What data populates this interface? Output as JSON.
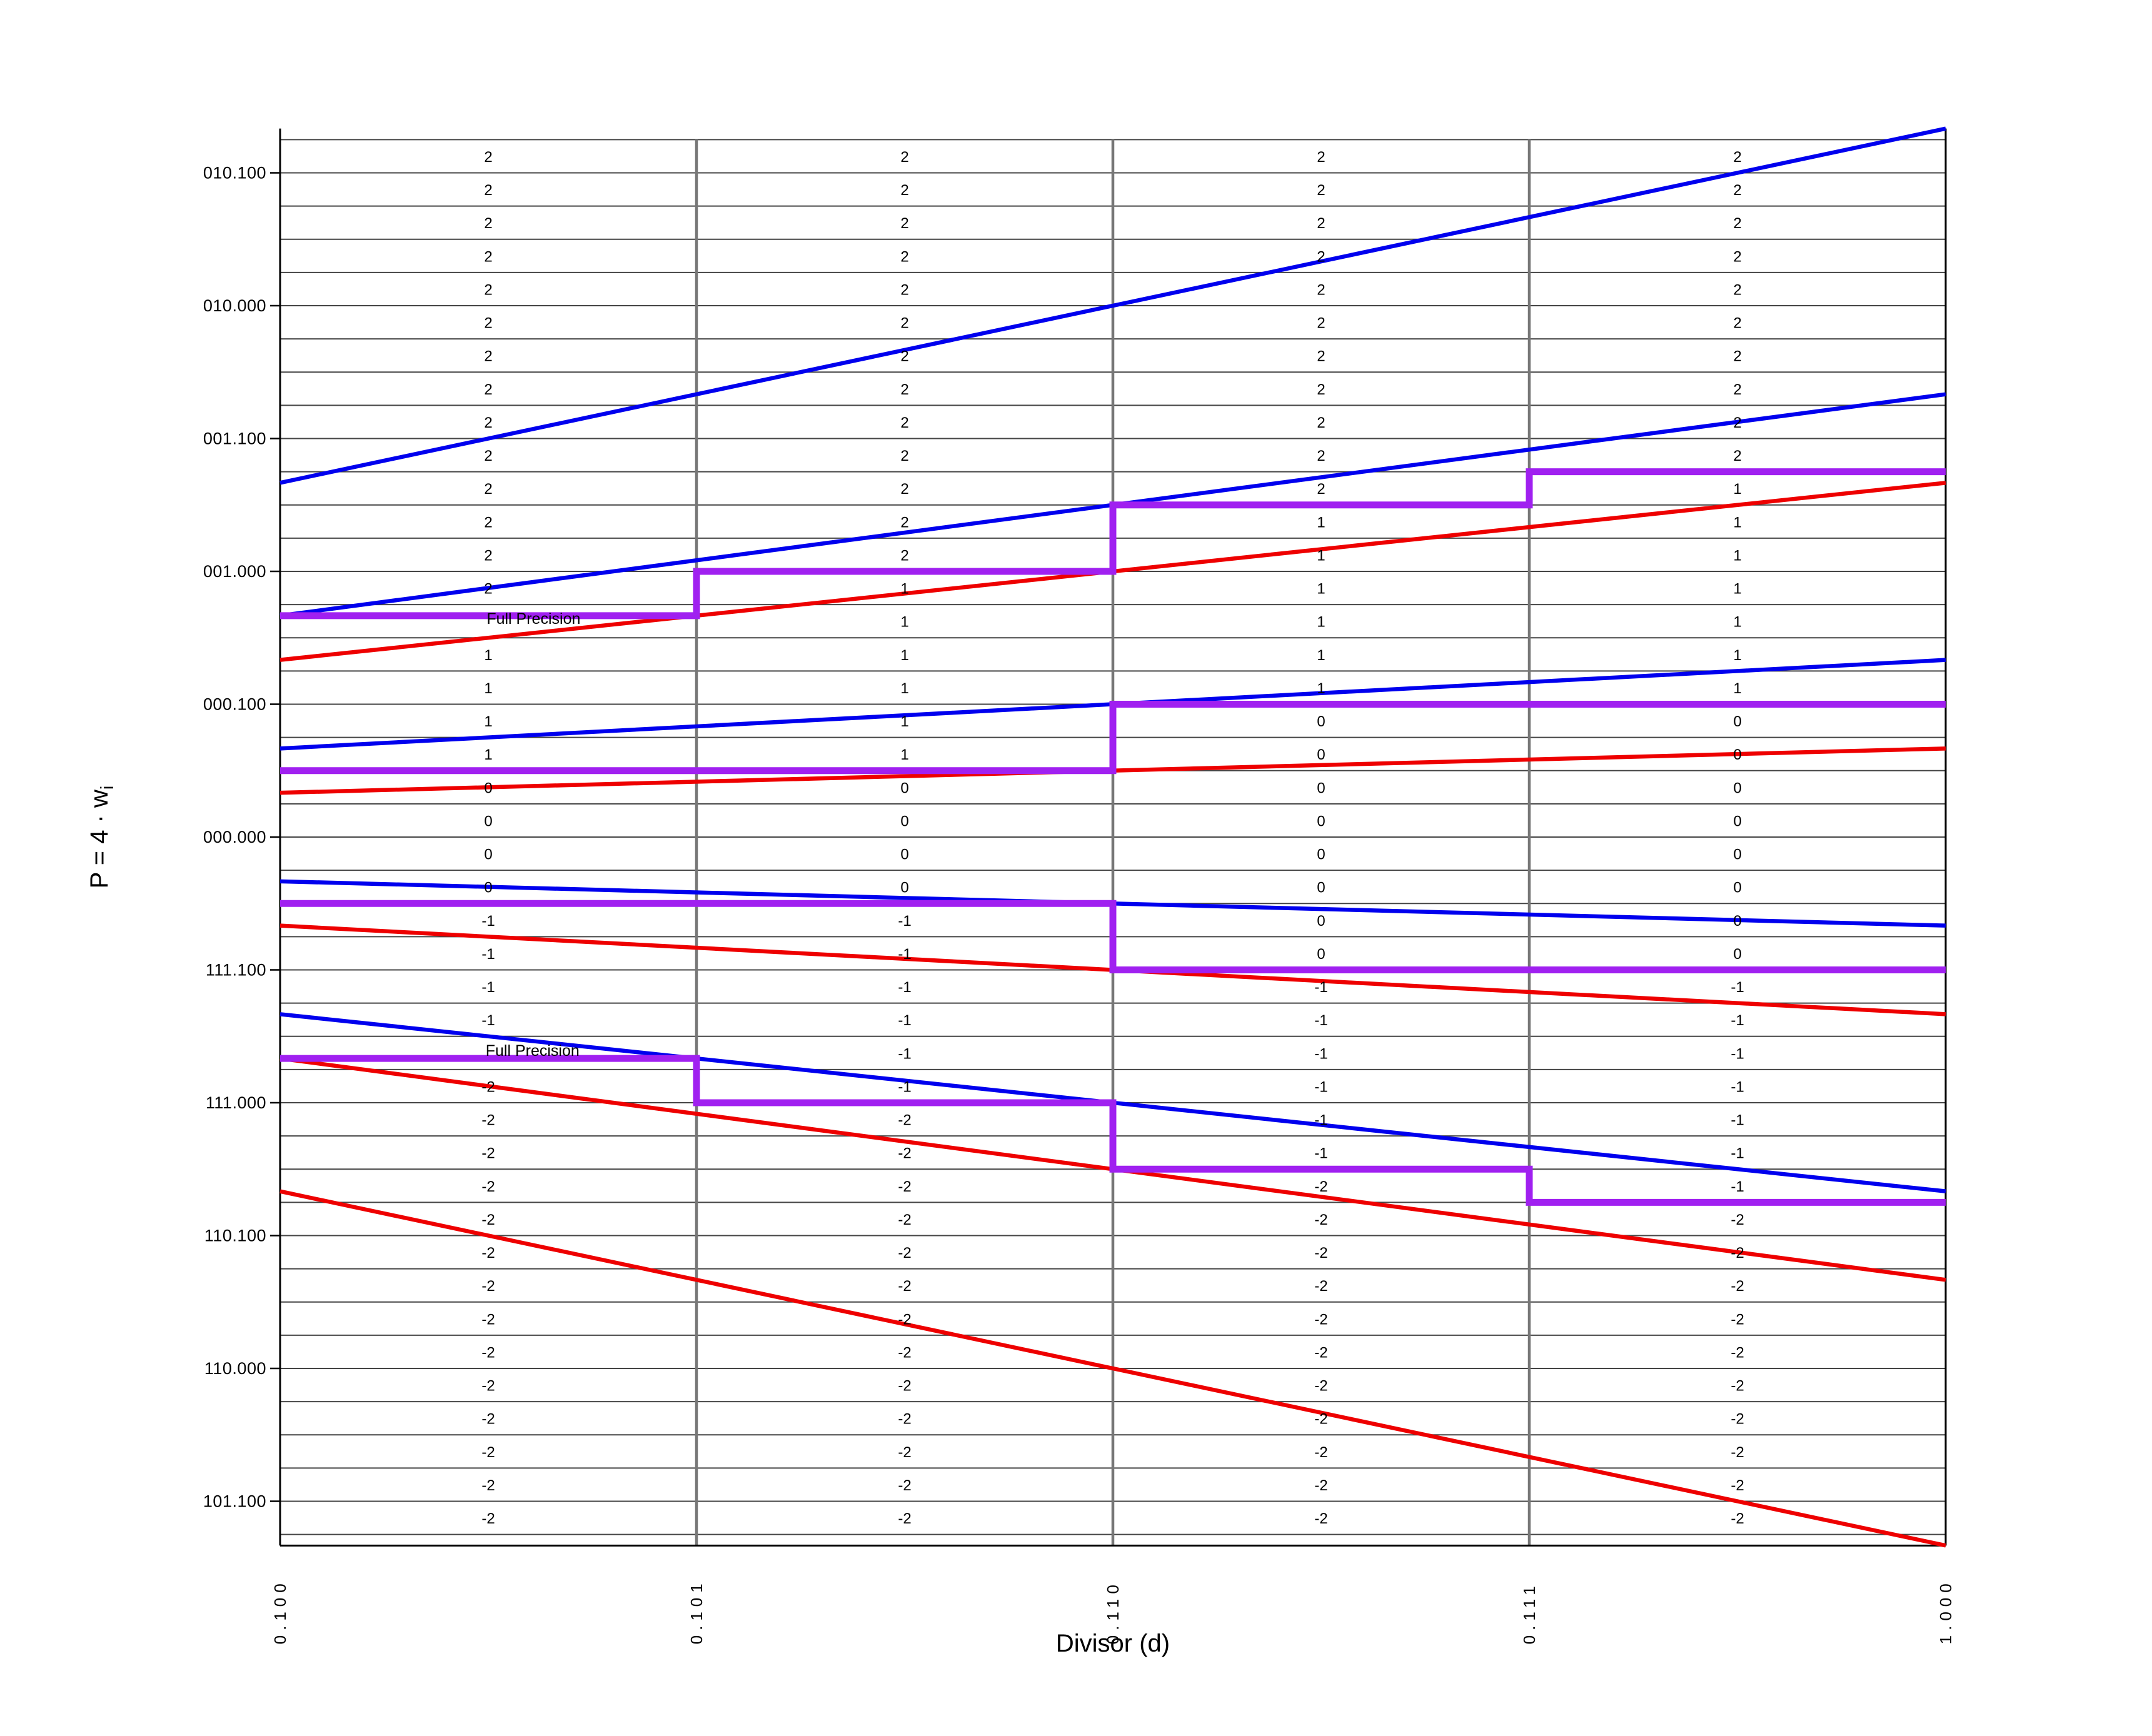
{
  "page": {
    "background": "#ffffff"
  },
  "colors": {
    "blue_lines": "#0000EE",
    "red_lines": "#EE0000",
    "staircase_purple": "#A020F0",
    "grid_horizontal": "#444444",
    "grid_vertical": "#777777",
    "axis_black": "#000000",
    "text": "#000000"
  },
  "chart_data": {
    "type": "line",
    "title": "",
    "x_axis": {
      "title": "Divisor (d)",
      "range": [
        0.5,
        1.0
      ],
      "ticks": [
        {
          "value": 0.5,
          "label": "0.100"
        },
        {
          "value": 0.625,
          "label": "0.101"
        },
        {
          "value": 0.75,
          "label": "0.110"
        },
        {
          "value": 0.875,
          "label": "0.111"
        },
        {
          "value": 1.0,
          "label": "1.000"
        }
      ]
    },
    "y_axis": {
      "title_main": "P = 4 · w",
      "title_sub": "i",
      "range": [
        -2.66667,
        2.66667
      ],
      "grid_min": -2.625,
      "grid_max": 2.625,
      "grid_step": 0.125,
      "ticks": [
        {
          "value": 2.5,
          "label": "010.100"
        },
        {
          "value": 2.0,
          "label": "010.000"
        },
        {
          "value": 1.5,
          "label": "001.100"
        },
        {
          "value": 1.0,
          "label": "001.000"
        },
        {
          "value": 0.5,
          "label": "000.100"
        },
        {
          "value": 0.0,
          "label": "000.000"
        },
        {
          "value": -0.5,
          "label": "111.100"
        },
        {
          "value": -1.0,
          "label": "111.000"
        },
        {
          "value": -1.5,
          "label": "110.100"
        },
        {
          "value": -2.0,
          "label": "110.000"
        },
        {
          "value": -2.5,
          "label": "101.100"
        }
      ]
    },
    "blue_boundary_lines": {
      "color": "#0000EE",
      "slopes": [
        2.66667,
        1.66667,
        0.66667,
        -0.33333,
        -1.33333
      ]
    },
    "red_boundary_lines": {
      "color": "#EE0000",
      "slopes": [
        1.33333,
        0.33333,
        -0.66667,
        -1.66667,
        -2.66667
      ]
    },
    "staircases": {
      "color": "#A020F0",
      "column_edges": [
        0.5,
        0.625,
        0.75,
        0.875,
        1.0
      ],
      "boundaries": [
        {
          "between": "2|1",
          "levels": [
            0.83333,
            1.0,
            1.25,
            1.375
          ]
        },
        {
          "between": "1|0",
          "levels": [
            0.25,
            0.25,
            0.5,
            0.5
          ]
        },
        {
          "between": "0|-1",
          "levels": [
            -0.25,
            -0.25,
            -0.5,
            -0.5
          ]
        },
        {
          "between": "-1|-2",
          "levels": [
            -0.83333,
            -1.0,
            -1.25,
            -1.375
          ]
        }
      ]
    },
    "annotations": [
      {
        "text": "Full Precision",
        "d": 0.562,
        "p": 0.802
      },
      {
        "text": "Full Precision",
        "d": 0.5617,
        "p": -0.8235
      }
    ],
    "cell_digits": {
      "column_centers": [
        0.5625,
        0.6875,
        0.8125,
        0.9375
      ],
      "row_center_start": 2.5625,
      "row_center_step": -0.125,
      "rows": [
        [
          "2",
          "2",
          "2",
          "2"
        ],
        [
          "2",
          "2",
          "2",
          "2"
        ],
        [
          "2",
          "2",
          "2",
          "2"
        ],
        [
          "2",
          "2",
          "2",
          "2"
        ],
        [
          "2",
          "2",
          "2",
          "2"
        ],
        [
          "2",
          "2",
          "2",
          "2"
        ],
        [
          "2",
          "2",
          "2",
          "2"
        ],
        [
          "2",
          "2",
          "2",
          "2"
        ],
        [
          "2",
          "2",
          "2",
          "2"
        ],
        [
          "2",
          "2",
          "2",
          "2"
        ],
        [
          "2",
          "2",
          "2",
          "1"
        ],
        [
          "2",
          "2",
          "1",
          "1"
        ],
        [
          "2",
          "2",
          "1",
          "1"
        ],
        [
          "2",
          "1",
          "1",
          "1"
        ],
        [
          "",
          "1",
          "1",
          "1"
        ],
        [
          "1",
          "1",
          "1",
          "1"
        ],
        [
          "1",
          "1",
          "1",
          "1"
        ],
        [
          "1",
          "1",
          "0",
          "0"
        ],
        [
          "1",
          "1",
          "0",
          "0"
        ],
        [
          "0",
          "0",
          "0",
          "0"
        ],
        [
          "0",
          "0",
          "0",
          "0"
        ],
        [
          "0",
          "0",
          "0",
          "0"
        ],
        [
          "0",
          "0",
          "0",
          "0"
        ],
        [
          "-1",
          "-1",
          "0",
          "0"
        ],
        [
          "-1",
          "-1",
          "0",
          "0"
        ],
        [
          "-1",
          "-1",
          "-1",
          "-1"
        ],
        [
          "-1",
          "-1",
          "-1",
          "-1"
        ],
        [
          "",
          "-1",
          "-1",
          "-1"
        ],
        [
          "-2",
          "-1",
          "-1",
          "-1"
        ],
        [
          "-2",
          "-2",
          "-1",
          "-1"
        ],
        [
          "-2",
          "-2",
          "-1",
          "-1"
        ],
        [
          "-2",
          "-2",
          "-2",
          "-1"
        ],
        [
          "-2",
          "-2",
          "-2",
          "-2"
        ],
        [
          "-2",
          "-2",
          "-2",
          "-2"
        ],
        [
          "-2",
          "-2",
          "-2",
          "-2"
        ],
        [
          "-2",
          "-2",
          "-2",
          "-2"
        ],
        [
          "-2",
          "-2",
          "-2",
          "-2"
        ],
        [
          "-2",
          "-2",
          "-2",
          "-2"
        ],
        [
          "-2",
          "-2",
          "-2",
          "-2"
        ],
        [
          "-2",
          "-2",
          "-2",
          "-2"
        ],
        [
          "-2",
          "-2",
          "-2",
          "-2"
        ],
        [
          "-2",
          "-2",
          "-2",
          "-2"
        ]
      ]
    }
  }
}
